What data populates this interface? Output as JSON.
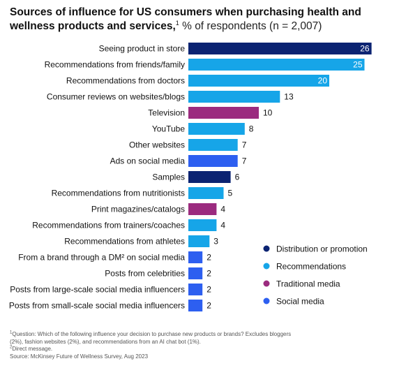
{
  "title": {
    "bold": "Sources of influence for US consumers when purchasing health and wellness products and services,",
    "note_mark": "1",
    "rest": " % of respondents (n = 2,007)"
  },
  "colors": {
    "distribution": "#0b2372",
    "recommendations": "#16a5e8",
    "traditional": "#9b2b7f",
    "social": "#2d5ff0"
  },
  "chart_data": {
    "type": "bar",
    "orientation": "horizontal",
    "categories": [
      "Seeing product in store",
      "Recommendations from friends/family",
      "Recommendations from doctors",
      "Consumer reviews on websites/blogs",
      "Television",
      "YouTube",
      "Other websites",
      "Ads on social media",
      "Samples",
      "Recommendations from nutritionists",
      "Print magazines/catalogs",
      "Recommendations from trainers/coaches",
      "Recommendations from athletes",
      "From a brand through a DM² on social media",
      "Posts from celebrities",
      "Posts from large-scale social media influencers",
      "Posts from small-scale social media influencers"
    ],
    "values": [
      26,
      25,
      20,
      13,
      10,
      8,
      7,
      7,
      6,
      5,
      4,
      4,
      3,
      2,
      2,
      2,
      2
    ],
    "groups": [
      "distribution",
      "recommendations",
      "recommendations",
      "recommendations",
      "traditional",
      "recommendations",
      "recommendations",
      "social",
      "distribution",
      "recommendations",
      "traditional",
      "recommendations",
      "recommendations",
      "social",
      "social",
      "social",
      "social"
    ],
    "value_labels_inside": [
      true,
      true,
      true,
      false,
      false,
      false,
      false,
      false,
      false,
      false,
      false,
      false,
      false,
      false,
      false,
      false,
      false
    ],
    "legend": [
      {
        "key": "distribution",
        "label": "Distribution or promotion"
      },
      {
        "key": "recommendations",
        "label": "Recommendations"
      },
      {
        "key": "traditional",
        "label": "Traditional media"
      },
      {
        "key": "social",
        "label": "Social media"
      }
    ],
    "legend_position": "right",
    "grid": false,
    "xlim": [
      0,
      26
    ]
  },
  "footnotes": {
    "note1_mark": "1",
    "note1_line1": "Question: Which of the following influence your decision to purchase new products or brands? Excludes bloggers",
    "note1_line2": "(2%), fashion websites (2%), and recommendations from an AI chat bot (1%).",
    "note2_mark": "2",
    "note2": "Direct message.",
    "source": "Source: McKinsey Future of Wellness Survey, Aug 2023"
  }
}
